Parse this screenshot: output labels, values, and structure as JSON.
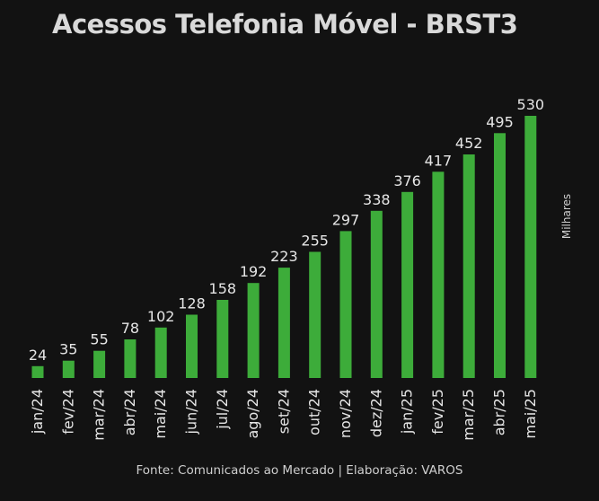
{
  "chart_data": {
    "type": "bar",
    "title": "Acessos Telefonia Móvel - BRST3",
    "ylabel": "Milhares",
    "categories": [
      "jan/24",
      "fev/24",
      "mar/24",
      "abr/24",
      "mai/24",
      "jun/24",
      "jul/24",
      "ago/24",
      "set/24",
      "out/24",
      "nov/24",
      "dez/24",
      "jan/25",
      "fev/25",
      "mar/25",
      "abr/25",
      "mai/25"
    ],
    "values": [
      24,
      35,
      55,
      78,
      102,
      128,
      158,
      192,
      223,
      255,
      297,
      338,
      376,
      417,
      452,
      495,
      530
    ],
    "ylim": [
      0,
      530
    ],
    "grid": false,
    "legend": "none",
    "bar_color": "#3dac3a",
    "label_color": "#e6e6e6"
  },
  "footer": "Fonte: Comunicados ao Mercado | Elaboração: VAROS"
}
